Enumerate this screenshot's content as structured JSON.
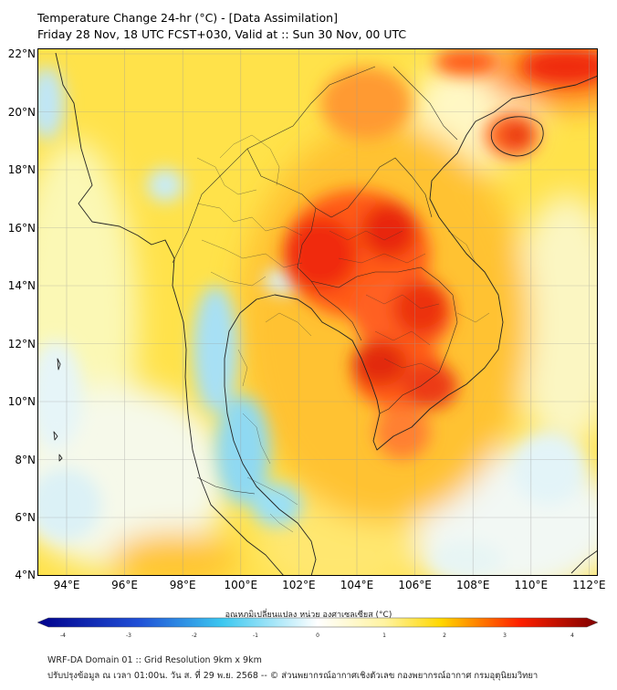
{
  "header": {
    "title": "Temperature Change 24-hr (°C) - [Data Assimilation]",
    "subtitle": "Friday 28 Nov, 18 UTC FCST+030, Valid at :: Sun 30 Nov, 00 UTC"
  },
  "map": {
    "lat_labels": [
      "22°N",
      "20°N",
      "18°N",
      "16°N",
      "14°N",
      "12°N",
      "10°N",
      "8°N",
      "6°N",
      "4°N"
    ],
    "lon_labels": [
      "94°E",
      "96°E",
      "98°E",
      "100°E",
      "102°E",
      "104°E",
      "106°E",
      "108°E",
      "110°E",
      "112°E"
    ],
    "extent": {
      "lon_min": 93.0,
      "lon_max": 112.3,
      "lat_min": 4.0,
      "lat_max": 22.2
    }
  },
  "colorbar": {
    "title": "อุณหภูมิเปลี่ยนแปลง หน่วย องศาเซลเซียส (°C)",
    "min": -4,
    "max": 4,
    "ticks": [
      "-4",
      "-3",
      "-2",
      "-1",
      "0",
      "1",
      "2",
      "3",
      "4"
    ]
  },
  "footer": {
    "line1": "WRF-DA Domain 01 :: Grid Resolution 9km x 9km",
    "line2": "ปรับปรุงข้อมูล ณ เวลา 01:00น. วัน ส. ที่ 29 พ.ย. 2568 -- © ส่วนพยากรณ์อากาศเชิงตัวเลข กองพยากรณ์อากาศ กรมอุตุนิยมวิทยา"
  },
  "colors": {
    "cold_max": "#00008b",
    "cold": "#3cc8f0",
    "neutral": "#ffffff",
    "warm": "#ffd700",
    "hot": "#ff2000",
    "hot_max": "#800000"
  }
}
